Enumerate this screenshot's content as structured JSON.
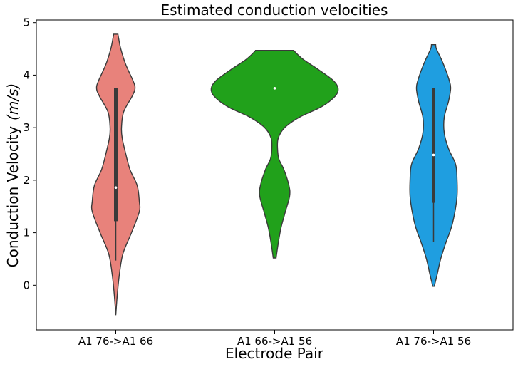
{
  "chart_data": {
    "type": "violin",
    "title": "Estimated conduction velocities",
    "xlabel": "Electrode Pair",
    "ylabel_text": "Conduction Velocity",
    "ylabel_unit": "(m/s)",
    "ylim": [
      -0.85,
      5.05
    ],
    "yticks": [
      0,
      1,
      2,
      3,
      4,
      5
    ],
    "grid": false,
    "categories": [
      "A1 76->A1 66",
      "A1 66->A1 56",
      "A1 76->A1 56"
    ],
    "colors": [
      "#e8827b",
      "#21a11b",
      "#1f9ee0"
    ],
    "violins": [
      {
        "category": "A1 76->A1 66",
        "color": "#e8827b",
        "min": -0.57,
        "max": 4.78,
        "q1": 1.22,
        "median": 1.86,
        "q3": 3.76,
        "whisker_low": 0.47,
        "whisker_high": 3.76,
        "profile": [
          [
            -0.57,
            0
          ],
          [
            -0.2,
            2
          ],
          [
            0.2,
            5
          ],
          [
            0.6,
            10
          ],
          [
            1.0,
            22
          ],
          [
            1.4,
            33
          ],
          [
            1.6,
            33
          ],
          [
            1.9,
            30
          ],
          [
            2.2,
            20
          ],
          [
            2.5,
            14
          ],
          [
            2.8,
            9
          ],
          [
            3.0,
            8
          ],
          [
            3.3,
            11
          ],
          [
            3.6,
            23
          ],
          [
            3.75,
            27
          ],
          [
            3.9,
            24
          ],
          [
            4.2,
            14
          ],
          [
            4.5,
            7
          ],
          [
            4.7,
            4
          ],
          [
            4.78,
            3
          ]
        ]
      },
      {
        "category": "A1 66->A1 56",
        "color": "#21a11b",
        "min": 0.52,
        "max": 4.47,
        "q1": 3.75,
        "median": 3.75,
        "q3": 3.75,
        "whisker_low": 3.75,
        "whisker_high": 3.75,
        "profile": [
          [
            0.52,
            2
          ],
          [
            0.8,
            5
          ],
          [
            1.1,
            9
          ],
          [
            1.4,
            15
          ],
          [
            1.7,
            21
          ],
          [
            1.9,
            20
          ],
          [
            2.2,
            13
          ],
          [
            2.4,
            6
          ],
          [
            2.6,
            4
          ],
          [
            2.8,
            5
          ],
          [
            3.0,
            14
          ],
          [
            3.2,
            35
          ],
          [
            3.4,
            66
          ],
          [
            3.6,
            85
          ],
          [
            3.75,
            89
          ],
          [
            3.9,
            82
          ],
          [
            4.1,
            62
          ],
          [
            4.3,
            40
          ],
          [
            4.45,
            28
          ],
          [
            4.47,
            27
          ]
        ]
      },
      {
        "category": "A1 76->A1 56",
        "color": "#1f9ee0",
        "min": -0.02,
        "max": 4.58,
        "q1": 1.57,
        "median": 2.48,
        "q3": 3.76,
        "whisker_low": 0.83,
        "whisker_high": 3.76,
        "profile": [
          [
            -0.02,
            1
          ],
          [
            0.2,
            5
          ],
          [
            0.5,
            10
          ],
          [
            0.8,
            17
          ],
          [
            1.1,
            25
          ],
          [
            1.4,
            30
          ],
          [
            1.7,
            33
          ],
          [
            2.0,
            33
          ],
          [
            2.3,
            31
          ],
          [
            2.6,
            21
          ],
          [
            2.9,
            15
          ],
          [
            3.2,
            15
          ],
          [
            3.5,
            21
          ],
          [
            3.75,
            24
          ],
          [
            3.9,
            22
          ],
          [
            4.1,
            17
          ],
          [
            4.3,
            11
          ],
          [
            4.5,
            4
          ],
          [
            4.58,
            3
          ]
        ]
      }
    ]
  }
}
